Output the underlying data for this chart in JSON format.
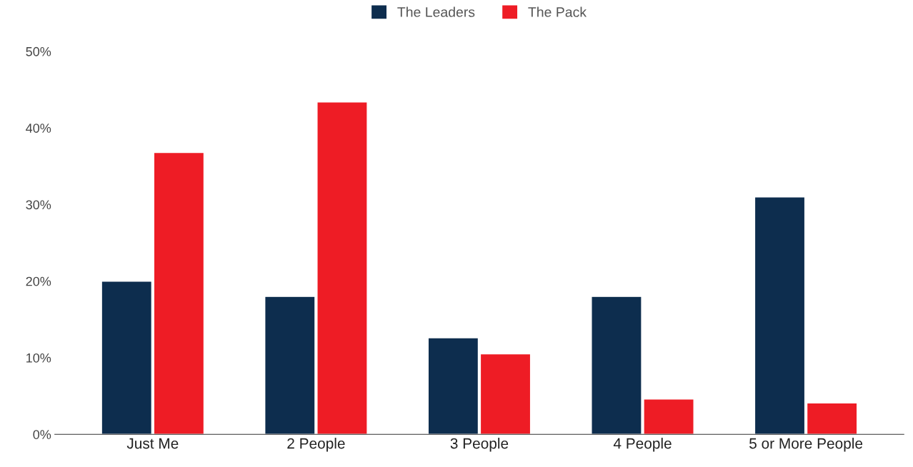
{
  "chart_data": {
    "type": "bar",
    "categories": [
      "Just Me",
      "2 People",
      "3 People",
      "4 People",
      "5 or More People"
    ],
    "series": [
      {
        "name": "The Leaders",
        "color": "#0d2d4e",
        "values": [
          20,
          18,
          12.6,
          18,
          31
        ]
      },
      {
        "name": "The Pack",
        "color": "#ee1c25",
        "values": [
          36.8,
          43.4,
          10.5,
          4.6,
          4.1
        ]
      }
    ],
    "ylim": [
      0,
      50
    ],
    "yticks": [
      {
        "value": 0,
        "label": "0%"
      },
      {
        "value": 10,
        "label": "10%"
      },
      {
        "value": 20,
        "label": "20%"
      },
      {
        "value": 30,
        "label": "30%"
      },
      {
        "value": 40,
        "label": "40%"
      },
      {
        "value": 50,
        "label": "50%"
      }
    ],
    "grid": false,
    "legend": "top"
  }
}
